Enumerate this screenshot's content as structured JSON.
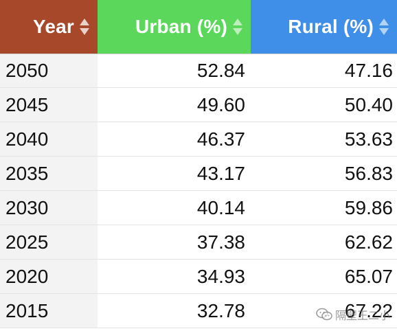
{
  "table": {
    "columns": [
      {
        "label": "Year",
        "sort_icon": "sort-arrows-icon"
      },
      {
        "label": "Urban (%)",
        "sort_icon": "sort-arrows-icon"
      },
      {
        "label": "Rural (%)",
        "sort_icon": "sort-arrows-icon"
      }
    ],
    "rows": [
      {
        "year": "2050",
        "urban": "52.84",
        "rural": "47.16"
      },
      {
        "year": "2045",
        "urban": "49.60",
        "rural": "50.40"
      },
      {
        "year": "2040",
        "urban": "46.37",
        "rural": "53.63"
      },
      {
        "year": "2035",
        "urban": "43.17",
        "rural": "56.83"
      },
      {
        "year": "2030",
        "urban": "40.14",
        "rural": "59.86"
      },
      {
        "year": "2025",
        "urban": "37.38",
        "rural": "62.62"
      },
      {
        "year": "2020",
        "urban": "34.93",
        "rural": "65.07"
      },
      {
        "year": "2015",
        "urban": "32.78",
        "rural": "67.22"
      }
    ]
  },
  "colors": {
    "year_header": "#a8482a",
    "urban_header": "#5bd75b",
    "rural_header": "#3f8fe8"
  },
  "watermark": {
    "icon": "wechat-icon",
    "text": "隔壁王二小"
  }
}
